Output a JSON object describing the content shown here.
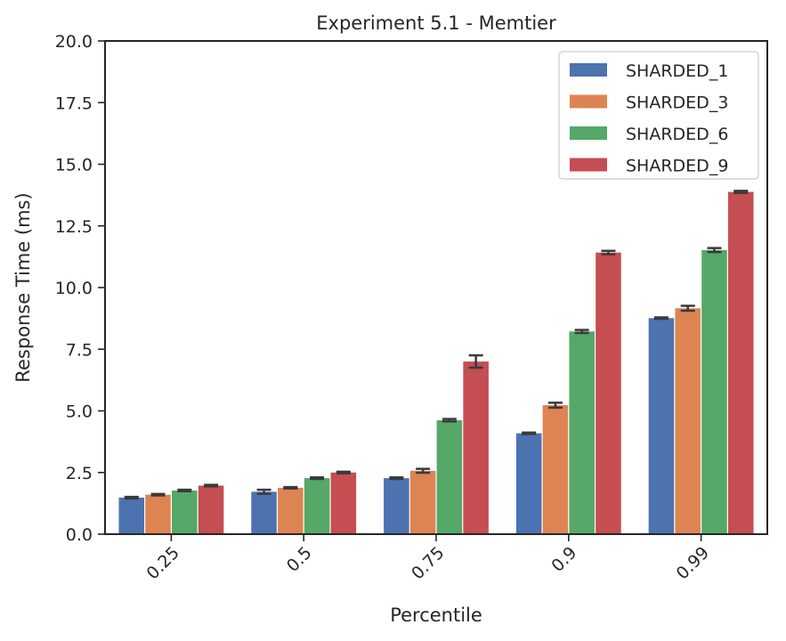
{
  "chart_data": {
    "type": "bar",
    "title": "Experiment 5.1 - Memtier",
    "xlabel": "Percentile",
    "ylabel": "Response Time (ms)",
    "categories": [
      "0.25",
      "0.5",
      "0.75",
      "0.9",
      "0.99"
    ],
    "ylim": [
      0,
      20
    ],
    "yticks": [
      "0.0",
      "2.5",
      "5.0",
      "7.5",
      "10.0",
      "12.5",
      "15.0",
      "17.5",
      "20.0"
    ],
    "legend_position": "top-right",
    "grid": false,
    "series": [
      {
        "name": "SHARDED_1",
        "color": "#4c72b0",
        "values": [
          1.48,
          1.72,
          2.27,
          4.09,
          8.76
        ],
        "errors": [
          0.03,
          0.08,
          0.03,
          0.03,
          0.03
        ]
      },
      {
        "name": "SHARDED_3",
        "color": "#dd8452",
        "values": [
          1.6,
          1.88,
          2.57,
          5.23,
          9.16
        ],
        "errors": [
          0.03,
          0.03,
          0.08,
          0.1,
          0.1
        ]
      },
      {
        "name": "SHARDED_6",
        "color": "#55a868",
        "values": [
          1.77,
          2.27,
          4.62,
          8.22,
          11.52
        ],
        "errors": [
          0.03,
          0.03,
          0.05,
          0.06,
          0.08
        ]
      },
      {
        "name": "SHARDED_9",
        "color": "#c44e52",
        "values": [
          1.97,
          2.5,
          7.0,
          11.42,
          13.88
        ],
        "errors": [
          0.03,
          0.03,
          0.25,
          0.07,
          0.04
        ]
      }
    ]
  }
}
